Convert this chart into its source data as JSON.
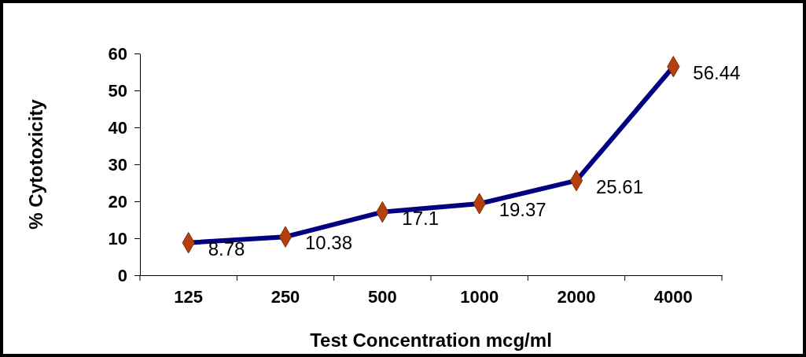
{
  "chart_data": {
    "type": "line",
    "xlabel": "Test Concentration mcg/ml",
    "ylabel": "%  Cytotoxicity",
    "categories": [
      "125",
      "250",
      "500",
      "1000",
      "2000",
      "4000"
    ],
    "series": [
      {
        "color": "#000080",
        "values": [
          8.78,
          10.38,
          17.1,
          19.37,
          25.61,
          56.44
        ]
      }
    ],
    "ylim": [
      0,
      60
    ],
    "yticks": [
      0,
      10,
      20,
      30,
      40,
      50,
      60
    ],
    "grid": false,
    "marker": "diamond",
    "line_style": "solid",
    "data_labels": true
  }
}
